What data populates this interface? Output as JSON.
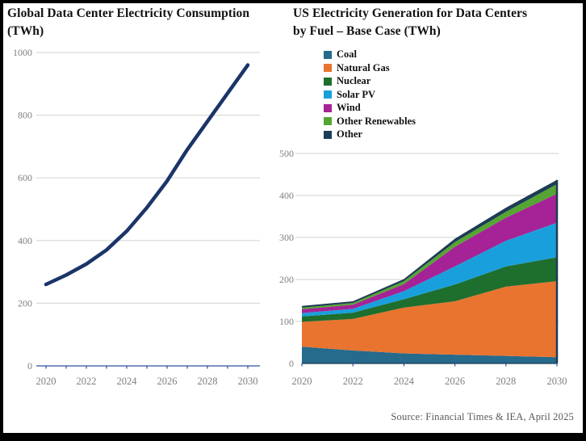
{
  "source": "Source: Financial Times & IEA, April 2025",
  "style": {
    "grid_color": "#d9d9d9",
    "axis_color": "#2e4f9e",
    "tick_label_color": "#7f7f7f",
    "title_color": "#111111",
    "background": "#ffffff",
    "frame_border": "#000000"
  },
  "chart_data": [
    {
      "type": "line",
      "title": "Global Data Center Electricity Consumption (TWh)",
      "title_lines": [
        "Global Data Center Electricity Consumption",
        "(TWh)"
      ],
      "x": [
        2020,
        2021,
        2022,
        2023,
        2024,
        2025,
        2026,
        2027,
        2028,
        2029,
        2030
      ],
      "values": [
        260,
        290,
        325,
        370,
        430,
        505,
        590,
        690,
        780,
        870,
        960
      ],
      "line_color": "#1b3468",
      "ylim": [
        0,
        1000
      ],
      "yticks": [
        0,
        200,
        400,
        600,
        800,
        1000
      ],
      "xticks_labeled": [
        2020,
        2022,
        2024,
        2026,
        2028,
        2030
      ],
      "grid": true,
      "legend": "none"
    },
    {
      "type": "area",
      "title": "US Electricity Generation for Data Centers by Fuel – Base Case (TWh)",
      "title_lines": [
        "US Electricity Generation for Data Centers",
        "by Fuel – Base Case (TWh)"
      ],
      "x": [
        2020,
        2022,
        2024,
        2026,
        2028,
        2030
      ],
      "series": [
        {
          "name": "Coal",
          "color": "#266a8c",
          "values": [
            40,
            31,
            24,
            21,
            18,
            15
          ]
        },
        {
          "name": "Natural Gas",
          "color": "#e87430",
          "values": [
            59,
            75,
            109,
            127,
            165,
            181
          ]
        },
        {
          "name": "Nuclear",
          "color": "#1e6e2d",
          "values": [
            13,
            15,
            20,
            40,
            48,
            57
          ]
        },
        {
          "name": "Solar PV",
          "color": "#19a0dc",
          "values": [
            8,
            9,
            19,
            43,
            61,
            82
          ]
        },
        {
          "name": "Wind",
          "color": "#a52396",
          "values": [
            9,
            10,
            17,
            47,
            55,
            69
          ]
        },
        {
          "name": "Other Renewables",
          "color": "#55a532",
          "values": [
            4,
            4,
            7,
            11,
            14,
            23
          ]
        },
        {
          "name": "Other",
          "color": "#1d3c55",
          "values": [
            4,
            4,
            5,
            8,
            10,
            10
          ]
        }
      ],
      "stacked_totals": [
        137,
        148,
        201,
        297,
        371,
        437
      ],
      "ylim": [
        0,
        500
      ],
      "yticks": [
        0,
        100,
        200,
        300,
        400,
        500
      ],
      "xticks_labeled": [
        2020,
        2022,
        2024,
        2026,
        2028,
        2030
      ],
      "grid": true,
      "legend_position": "top-left"
    }
  ]
}
